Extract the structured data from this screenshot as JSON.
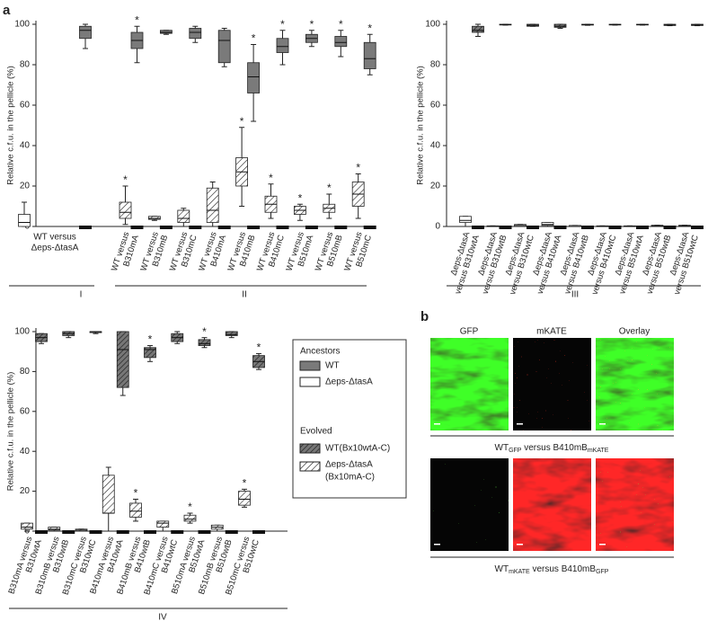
{
  "panel_a": {
    "label": "a"
  },
  "chart_data": [
    {
      "type": "box",
      "ylabel": "Relative c.f.u. in the pellicle (%)",
      "ylim": [
        0,
        100
      ],
      "yticks": [
        0,
        20,
        40,
        60,
        80,
        100
      ],
      "groups": [
        "I",
        "II"
      ],
      "categories": [
        [
          "WT versus",
          "Δeps-ΔtasA"
        ],
        [
          "WT versus",
          "B310mA"
        ],
        [
          "WT versus",
          "B310mB"
        ],
        [
          "WT versus",
          "B310mC"
        ],
        [
          "WT versus",
          "B410mA"
        ],
        [
          "WT versus",
          "B410mB"
        ],
        [
          "WT versus",
          "B410mC"
        ],
        [
          "WT versus",
          "B510mA"
        ],
        [
          "WT versus",
          "B510mB"
        ],
        [
          "WT versus",
          "B510mC"
        ]
      ],
      "low": [
        {
          "style": "white",
          "stats": [
            0,
            0,
            2,
            6,
            12
          ]
        },
        {
          "style": "hatch-light",
          "stats": [
            1,
            4,
            7,
            12,
            20
          ],
          "star": "*"
        },
        {
          "style": "hatch-light",
          "stats": [
            3,
            3.5,
            4,
            5,
            5
          ]
        },
        {
          "style": "hatch-light",
          "stats": [
            0,
            2,
            4,
            8,
            9
          ]
        },
        {
          "style": "hatch-light",
          "stats": [
            0,
            2,
            8,
            19,
            22
          ]
        },
        {
          "style": "hatch-light",
          "stats": [
            10,
            20,
            27,
            34,
            49
          ],
          "star": "*"
        },
        {
          "style": "hatch-light",
          "stats": [
            4,
            7,
            11,
            15,
            21
          ],
          "star": "*"
        },
        {
          "style": "hatch-light",
          "stats": [
            3,
            6,
            8,
            10,
            11
          ],
          "star": "*"
        },
        {
          "style": "hatch-light",
          "stats": [
            4,
            7,
            9,
            11,
            16
          ],
          "star": "*"
        },
        {
          "style": "hatch-light",
          "stats": [
            4,
            10,
            16,
            22,
            26
          ],
          "star": "*"
        }
      ],
      "high": [
        {
          "style": "gray",
          "stats": [
            88,
            93,
            97,
            99,
            100
          ]
        },
        {
          "style": "gray",
          "stats": [
            81,
            88,
            92,
            96,
            99
          ],
          "star": "*"
        },
        {
          "style": "gray",
          "stats": [
            95,
            95.5,
            96,
            97,
            97
          ]
        },
        {
          "style": "gray",
          "stats": [
            91,
            93,
            96,
            98,
            99
          ]
        },
        {
          "style": "gray",
          "stats": [
            79,
            81,
            92,
            97,
            98
          ]
        },
        {
          "style": "gray",
          "stats": [
            52,
            66,
            74,
            81,
            90
          ],
          "star": "*"
        },
        {
          "style": "gray",
          "stats": [
            80,
            86,
            89,
            93,
            97
          ],
          "star": "*"
        },
        {
          "style": "gray",
          "stats": [
            89,
            91,
            93,
            95,
            97
          ],
          "star": "*"
        },
        {
          "style": "gray",
          "stats": [
            84,
            89,
            91,
            94,
            97
          ],
          "star": "*"
        },
        {
          "style": "gray",
          "stats": [
            75,
            78,
            83,
            91,
            95
          ],
          "star": "*"
        }
      ]
    },
    {
      "type": "box",
      "ylabel": "Relative c.f.u. in the pellicle (%)",
      "ylim": [
        0,
        100
      ],
      "yticks": [
        0,
        20,
        40,
        60,
        80,
        100
      ],
      "groups": [
        "III"
      ],
      "categories": [
        [
          "Δeps-ΔtasA",
          "versus B310wtA"
        ],
        [
          "Δeps-ΔtasA",
          "versus B310wtB"
        ],
        [
          "Δeps-ΔtasA",
          "versus B310wtC"
        ],
        [
          "Δeps-ΔtasA",
          "versus B410wtA"
        ],
        [
          "Δeps-ΔtasA",
          "versus B410wtB"
        ],
        [
          "Δeps-ΔtasA",
          "versus B410wtC"
        ],
        [
          "Δeps-ΔtasA",
          "versus B510wtA"
        ],
        [
          "Δeps-ΔtasA",
          "versus B510wtB"
        ],
        [
          "Δeps-ΔtasA",
          "versus B510wtC"
        ]
      ],
      "low": [
        {
          "style": "white",
          "stats": [
            0,
            2,
            3,
            5,
            5
          ]
        },
        {
          "style": "white",
          "stats": [
            0,
            0,
            0,
            0.3,
            0.3
          ]
        },
        {
          "style": "white",
          "stats": [
            0,
            0,
            0.5,
            1,
            1
          ]
        },
        {
          "style": "white",
          "stats": [
            0,
            0.5,
            1,
            2,
            2
          ]
        },
        {
          "style": "white",
          "stats": [
            0,
            0,
            0,
            0.5,
            0.5
          ]
        },
        {
          "style": "white",
          "stats": [
            0,
            0,
            0,
            0.3,
            0.3
          ]
        },
        {
          "style": "white",
          "stats": [
            0,
            0,
            0,
            0.3,
            0.3
          ]
        },
        {
          "style": "white",
          "stats": [
            0,
            0,
            0.3,
            0.6,
            0.6
          ]
        },
        {
          "style": "white",
          "stats": [
            0,
            0,
            0.3,
            0.6,
            0.6
          ]
        }
      ],
      "high": [
        {
          "style": "hatch-dark",
          "stats": [
            94,
            96,
            97,
            99,
            100
          ]
        },
        {
          "style": "hatch-dark",
          "stats": [
            99.6,
            99.7,
            99.8,
            100,
            100
          ]
        },
        {
          "style": "hatch-dark",
          "stats": [
            99,
            99,
            99.5,
            100,
            100
          ]
        },
        {
          "style": "hatch-dark",
          "stats": [
            98,
            98.5,
            99,
            100,
            100
          ]
        },
        {
          "style": "hatch-dark",
          "stats": [
            99.5,
            99.6,
            99.8,
            100,
            100
          ]
        },
        {
          "style": "hatch-dark",
          "stats": [
            99.6,
            99.7,
            99.8,
            100,
            100
          ]
        },
        {
          "style": "hatch-dark",
          "stats": [
            99.6,
            99.7,
            99.8,
            100,
            100
          ]
        },
        {
          "style": "hatch-dark",
          "stats": [
            99.3,
            99.4,
            99.6,
            100,
            100
          ]
        },
        {
          "style": "hatch-dark",
          "stats": [
            99.3,
            99.4,
            99.6,
            100,
            100
          ]
        }
      ]
    },
    {
      "type": "box",
      "ylabel": "Relative c.f.u. in the pellicle (%)",
      "ylim": [
        0,
        100
      ],
      "yticks": [
        0,
        20,
        40,
        60,
        80,
        100
      ],
      "groups": [
        "IV"
      ],
      "categories": [
        [
          "B310mA versus",
          "B310wtA"
        ],
        [
          "B310mB versus",
          "B310wtB"
        ],
        [
          "B310mC versus",
          "B310wtC"
        ],
        [
          "B410mA versus",
          "B410wtA"
        ],
        [
          "B410mB versus",
          "B410wtB"
        ],
        [
          "B410mC versus",
          "B410wtC"
        ],
        [
          "B510mA versus",
          "B510wtA"
        ],
        [
          "B510mB versus",
          "B510wtB"
        ],
        [
          "B510mC versus",
          "B510wtC"
        ]
      ],
      "low": [
        {
          "style": "hatch-light",
          "stats": [
            0,
            1,
            2,
            4,
            4
          ]
        },
        {
          "style": "hatch-light",
          "stats": [
            0,
            0.5,
            1,
            2,
            2
          ]
        },
        {
          "style": "hatch-light",
          "stats": [
            0,
            0,
            0.5,
            1,
            1
          ]
        },
        {
          "style": "hatch-light",
          "stats": [
            0,
            9,
            9,
            28,
            32
          ]
        },
        {
          "style": "hatch-light",
          "stats": [
            5,
            7,
            10,
            14,
            16
          ],
          "star": "*"
        },
        {
          "style": "hatch-light",
          "stats": [
            0,
            2,
            4,
            5,
            5
          ]
        },
        {
          "style": "hatch-light",
          "stats": [
            4,
            5,
            6,
            8,
            9
          ],
          "star": "*"
        },
        {
          "style": "hatch-light",
          "stats": [
            0,
            1,
            2,
            3,
            3
          ]
        },
        {
          "style": "hatch-light",
          "stats": [
            12,
            13,
            16,
            20,
            21
          ],
          "star": "*"
        }
      ],
      "high": [
        {
          "style": "hatch-dark",
          "stats": [
            94,
            95,
            97,
            99,
            99
          ]
        },
        {
          "style": "hatch-dark",
          "stats": [
            97,
            98,
            99,
            100,
            100
          ]
        },
        {
          "style": "hatch-dark",
          "stats": [
            99,
            99.5,
            100,
            100,
            100
          ]
        },
        {
          "style": "hatch-dark",
          "stats": [
            68,
            72,
            91,
            100,
            100
          ]
        },
        {
          "style": "hatch-dark",
          "stats": [
            85,
            87,
            91,
            92,
            93
          ],
          "star": "*"
        },
        {
          "style": "hatch-dark",
          "stats": [
            94,
            95,
            97,
            99,
            100
          ]
        },
        {
          "style": "hatch-dark",
          "stats": [
            92,
            93,
            94,
            96,
            97
          ],
          "star": "*"
        },
        {
          "style": "hatch-dark",
          "stats": [
            97,
            98,
            98.5,
            100,
            100
          ]
        },
        {
          "style": "hatch-dark",
          "stats": [
            81,
            82,
            85,
            88,
            89
          ],
          "star": "*"
        }
      ]
    }
  ],
  "legend": {
    "ancestors": "Ancestors",
    "wt": "WT",
    "mutant": "Δeps-ΔtasA",
    "evolved": "Evolved",
    "evolved_wt": "WT(Bx10wtA-C)",
    "evolved_mutant": [
      "Δeps-ΔtasA",
      "(Bx10mA-C)"
    ]
  },
  "panel_b": {
    "label": "b",
    "columns": [
      "GFP",
      "mKATE",
      "Overlay"
    ],
    "captions": [
      [
        "WT",
        "GFP",
        " versus B410mB",
        "mKATE"
      ],
      [
        "WT",
        "mKATE",
        " versus B410mB",
        "GFP"
      ]
    ]
  }
}
